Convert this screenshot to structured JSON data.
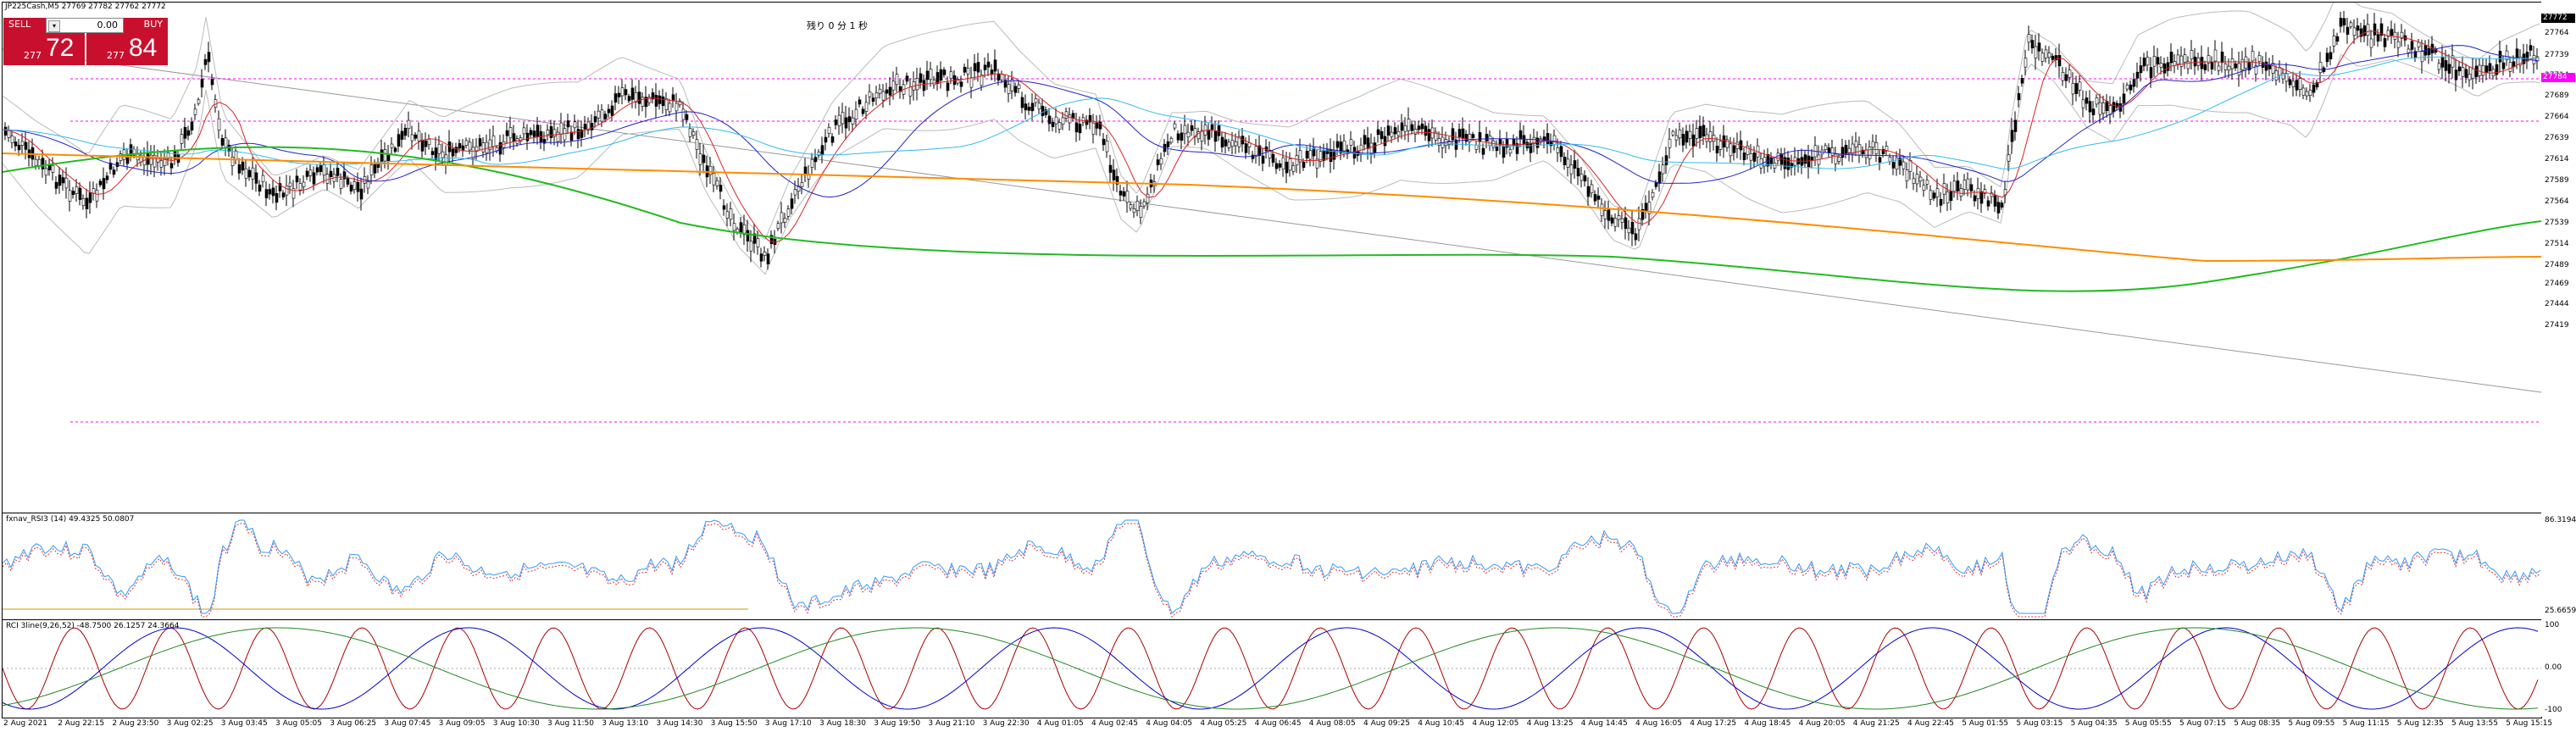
{
  "symbol_header": "JP225Cash,M5  27769 27782 27762 27772",
  "countdown": "残り 0 分 1 秒",
  "one_click": {
    "sell_label": "SELL",
    "buy_label": "BUY",
    "lot_value": "0.00",
    "sell_prefix": "277",
    "sell_big": "72",
    "buy_prefix": "277",
    "buy_big": "84"
  },
  "price_axis": [
    "27764",
    "27739",
    "27714",
    "27689",
    "27664",
    "27639",
    "27614",
    "27589",
    "27564",
    "27539",
    "27514",
    "27489",
    "27469",
    "27444",
    "27419"
  ],
  "price_tags": {
    "ask": "27784",
    "bid": "27772"
  },
  "rsi": {
    "title": "fxnav_RSI3 (14) 49.4325 50.0807",
    "axis": [
      "86.3194",
      "25.6659"
    ]
  },
  "rci": {
    "title": "RCI 3line(9,26,52) -48.7500 26.1257 24.3664",
    "axis": [
      "100",
      "0.00",
      "-100"
    ]
  },
  "time_axis": [
    "2 Aug 2021",
    "2 Aug 22:15",
    "2 Aug 23:50",
    "3 Aug 02:25",
    "3 Aug 03:45",
    "3 Aug 05:05",
    "3 Aug 06:25",
    "3 Aug 07:45",
    "3 Aug 09:05",
    "3 Aug 10:30",
    "3 Aug 11:50",
    "3 Aug 13:10",
    "3 Aug 14:30",
    "3 Aug 15:50",
    "3 Aug 17:10",
    "3 Aug 18:30",
    "3 Aug 19:50",
    "3 Aug 21:10",
    "3 Aug 22:30",
    "4 Aug 01:05",
    "4 Aug 02:45",
    "4 Aug 04:05",
    "4 Aug 05:25",
    "4 Aug 06:45",
    "4 Aug 08:05",
    "4 Aug 09:25",
    "4 Aug 10:45",
    "4 Aug 12:05",
    "4 Aug 13:25",
    "4 Aug 14:45",
    "4 Aug 16:05",
    "4 Aug 17:25",
    "4 Aug 18:45",
    "4 Aug 20:05",
    "4 Aug 21:25",
    "4 Aug 22:45",
    "5 Aug 01:55",
    "5 Aug 03:15",
    "5 Aug 04:35",
    "5 Aug 05:55",
    "5 Aug 07:15",
    "5 Aug 08:35",
    "5 Aug 09:55",
    "5 Aug 11:15",
    "5 Aug 12:35",
    "5 Aug 13:55",
    "5 Aug 15:15"
  ],
  "colors": {
    "sell": "#c8102e",
    "buy": "#c8102e",
    "ma_green": "#22bb22",
    "ma_orange": "#ff8c00",
    "ma_blue": "#2222cc",
    "ma_cyan": "#33bbee",
    "ma_red": "#dd2222",
    "level_magenta": "#ff00ff",
    "rsi_line": "#3399ff",
    "rci_red": "#aa0000",
    "rci_blue": "#0000cc",
    "rci_green": "#228822"
  }
}
